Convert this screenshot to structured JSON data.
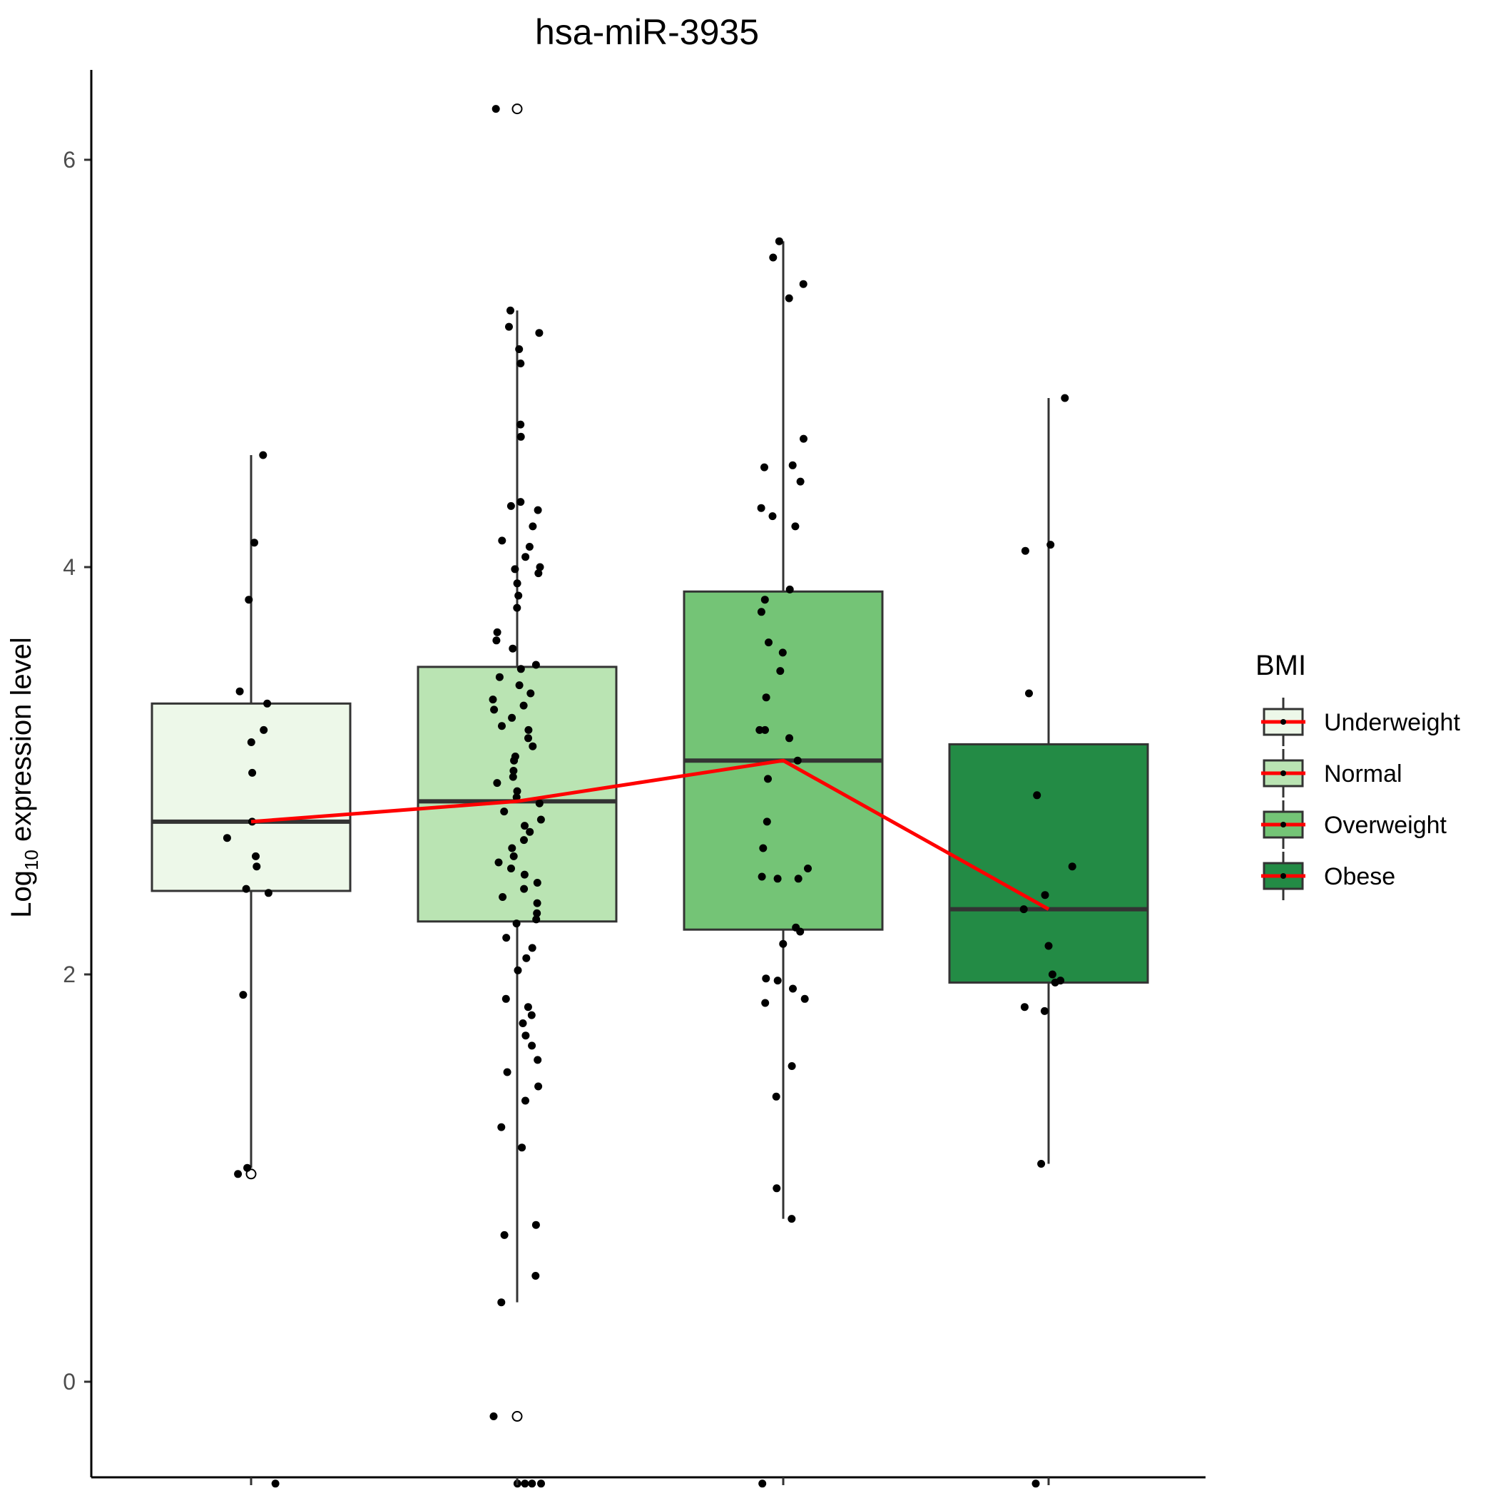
{
  "chart_data": {
    "type": "box",
    "title": "hsa-miR-3935",
    "ylabel_main": "Log",
    "ylabel_sub": "10",
    "ylabel_rest": " expression level",
    "xlabel": "",
    "ylim": [
      -0.5,
      6.6
    ],
    "yticks": [
      "0",
      "2",
      "4",
      "6"
    ],
    "grid": false,
    "legend": {
      "title": "BMI",
      "placement": "right",
      "items": [
        "Underweight",
        "Normal",
        "Overweight",
        "Obese"
      ]
    },
    "colors": {
      "Underweight": "#edf8e9",
      "Normal": "#bae4b3",
      "Overweight": "#74c476",
      "Obese": "#238b45",
      "median_line": "#ff0000",
      "box_stroke": "#333333"
    },
    "categories": [
      "Underweight",
      "Normal",
      "Overweight",
      "Obese"
    ],
    "boxes": [
      {
        "name": "Underweight",
        "lower_whisker": 1.05,
        "q1": 2.41,
        "median": 2.75,
        "q3": 3.33,
        "upper_whisker": 4.55,
        "outliers": [
          1.02
        ],
        "points": [
          4.55,
          4.12,
          3.84,
          3.39,
          3.33,
          3.2,
          3.14,
          2.99,
          2.75,
          2.67,
          2.58,
          2.53,
          2.42,
          2.4,
          1.9,
          1.05,
          1.02,
          -0.5
        ]
      },
      {
        "name": "Normal",
        "lower_whisker": 0.39,
        "q1": 2.26,
        "median": 2.85,
        "q3": 3.51,
        "upper_whisker": 5.26,
        "outliers": [
          6.25,
          -0.17
        ],
        "points": [
          6.25,
          5.26,
          5.18,
          5.15,
          5.07,
          5.0,
          4.7,
          4.64,
          4.32,
          4.3,
          4.28,
          4.2,
          4.13,
          4.1,
          4.05,
          4.0,
          3.99,
          3.97,
          3.92,
          3.86,
          3.8,
          3.68,
          3.64,
          3.6,
          3.52,
          3.5,
          3.46,
          3.42,
          3.38,
          3.35,
          3.32,
          3.3,
          3.26,
          3.22,
          3.2,
          3.16,
          3.12,
          3.07,
          3.05,
          3.0,
          2.97,
          2.94,
          2.9,
          2.87,
          2.84,
          2.8,
          2.76,
          2.73,
          2.7,
          2.66,
          2.62,
          2.58,
          2.55,
          2.52,
          2.49,
          2.45,
          2.42,
          2.38,
          2.35,
          2.3,
          2.27,
          2.25,
          2.18,
          2.13,
          2.08,
          2.02,
          1.88,
          1.84,
          1.8,
          1.76,
          1.7,
          1.65,
          1.58,
          1.52,
          1.45,
          1.38,
          1.25,
          1.15,
          0.77,
          0.72,
          0.52,
          0.39,
          -0.17,
          -0.5,
          -0.5,
          -0.5,
          -0.5
        ]
      },
      {
        "name": "Overweight",
        "lower_whisker": 0.8,
        "q1": 2.22,
        "median": 3.05,
        "q3": 3.88,
        "upper_whisker": 5.6,
        "outliers": [],
        "points": [
          5.6,
          5.52,
          5.39,
          5.32,
          4.63,
          4.5,
          4.49,
          4.42,
          4.29,
          4.25,
          4.2,
          3.89,
          3.84,
          3.78,
          3.63,
          3.58,
          3.49,
          3.36,
          3.2,
          3.2,
          3.16,
          3.05,
          2.96,
          2.75,
          2.62,
          2.52,
          2.48,
          2.47,
          2.47,
          2.23,
          2.21,
          2.15,
          1.98,
          1.97,
          1.93,
          1.88,
          1.86,
          1.55,
          1.4,
          0.95,
          0.8,
          -0.5
        ]
      },
      {
        "name": "Obese",
        "lower_whisker": 1.07,
        "q1": 1.96,
        "median": 2.32,
        "q3": 3.13,
        "upper_whisker": 4.83,
        "outliers": [],
        "points": [
          4.83,
          4.11,
          4.08,
          3.38,
          2.88,
          2.53,
          2.39,
          2.32,
          2.14,
          2.0,
          1.97,
          1.96,
          1.84,
          1.82,
          1.07,
          -0.5
        ]
      }
    ],
    "median_trend": [
      2.75,
      2.85,
      3.05,
      2.32
    ]
  }
}
